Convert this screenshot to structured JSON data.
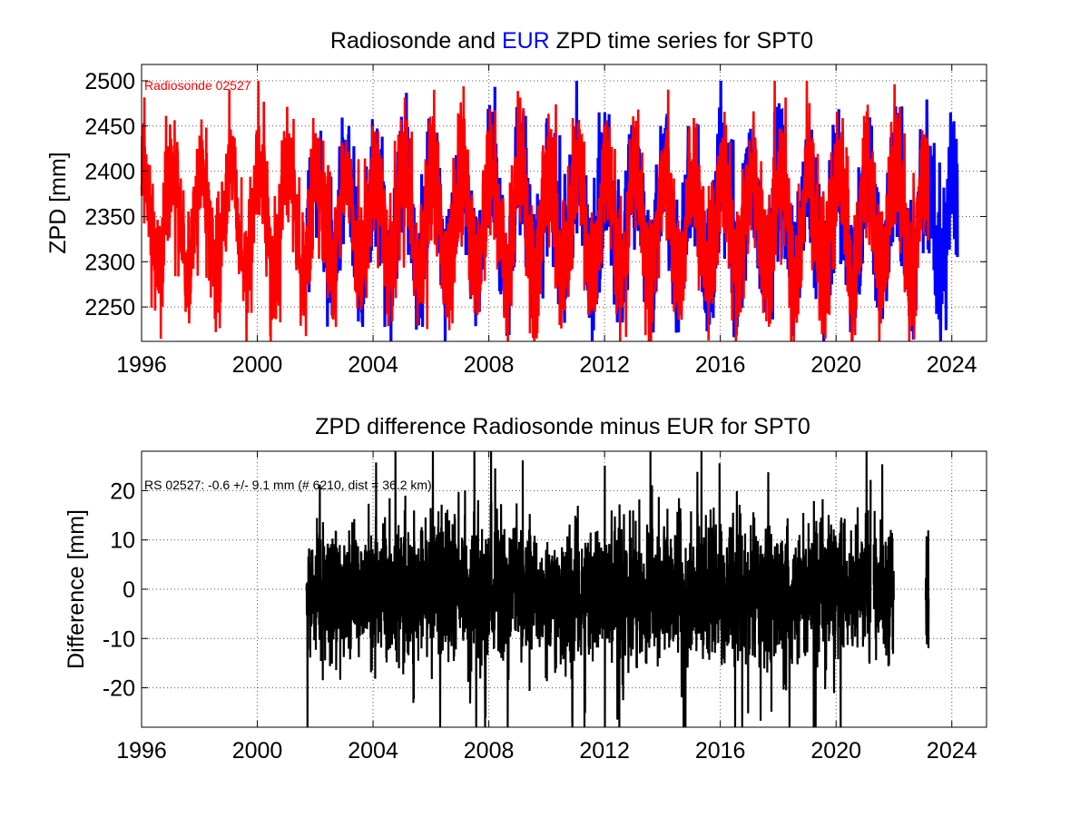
{
  "chart_data": [
    {
      "type": "line",
      "title_parts": [
        {
          "text": "Radiosonde and ",
          "color": "#000000"
        },
        {
          "text": "EUR",
          "color": "#0000ff"
        },
        {
          "text": " ZPD time series for SPT0",
          "color": "#000000"
        }
      ],
      "xlabel": "",
      "ylabel": "ZPD [mm]",
      "xlim": [
        1996,
        2025.2
      ],
      "ylim": [
        2212,
        2518
      ],
      "xticks": [
        1996,
        2000,
        2004,
        2008,
        2012,
        2016,
        2020,
        2024
      ],
      "yticks": [
        2250,
        2300,
        2350,
        2400,
        2450,
        2500
      ],
      "grid": true,
      "annotation": {
        "text": "Radiosonde 02527",
        "color": "#ff0000"
      },
      "series": [
        {
          "name": "EUR",
          "color": "#0000ff",
          "x_range": [
            2001.7,
            2024.2
          ],
          "mean": 2345,
          "amplitude": 62,
          "noise": 40
        },
        {
          "name": "Radiosonde 02527",
          "color": "#ff0000",
          "x_range": [
            1996.0,
            2023.2
          ],
          "mean": 2345,
          "amplitude": 62,
          "noise": 40
        }
      ]
    },
    {
      "type": "line",
      "title": "ZPD difference Radiosonde minus EUR for SPT0",
      "xlabel": "",
      "ylabel": "Difference [mm]",
      "xlim": [
        1996,
        2025.2
      ],
      "ylim": [
        -28,
        28
      ],
      "xticks": [
        1996,
        2000,
        2004,
        2008,
        2012,
        2016,
        2020,
        2024
      ],
      "yticks": [
        -20,
        -10,
        0,
        10,
        20
      ],
      "grid": true,
      "annotation": {
        "text": "RS 02527: -0.6 +/- 9.1 mm (# 6210, dist =  36.2 km)",
        "color": "#000000"
      },
      "series": [
        {
          "name": "",
          "color": "#000000",
          "segments": [
            [
              2001.7,
              2021.2
            ],
            [
              2021.3,
              2022.0
            ],
            [
              2023.1,
              2023.2
            ]
          ],
          "mean": -0.6,
          "std": 9.1
        }
      ]
    }
  ]
}
